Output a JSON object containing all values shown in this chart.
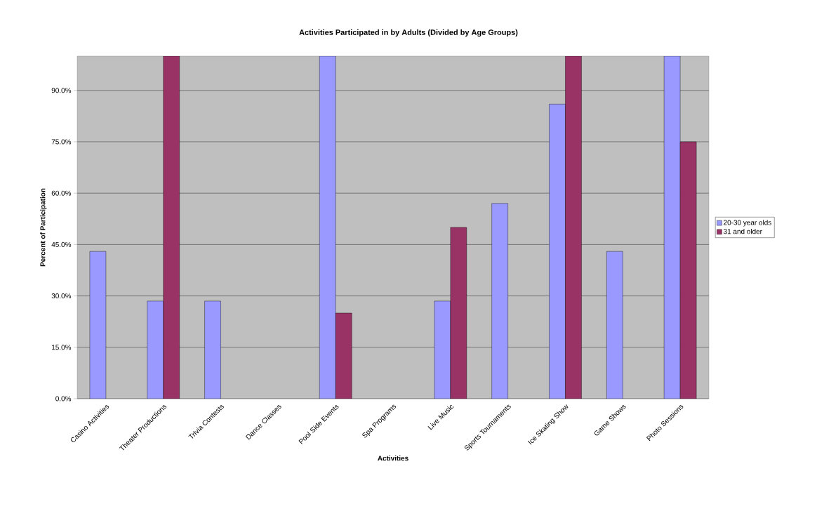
{
  "chart_data": {
    "type": "bar",
    "title": "Activities Participated in by Adults (Divided by Age Groups)",
    "xlabel": "Activities",
    "ylabel": "Percent of Participation",
    "categories": [
      "Casino Activities",
      "Theater Productions",
      "Trivia Contests",
      "Dance Classes",
      "Pool Side Events",
      "Spa Programs",
      "Live Music",
      "Sports Tournaments",
      "Ice Skating Show",
      "Game Shows",
      "Photo Sessions"
    ],
    "series": [
      {
        "name": "20-30 year olds",
        "color": "#9999ff",
        "values": [
          43,
          28.5,
          28.5,
          null,
          100,
          null,
          28.5,
          57,
          86,
          43,
          100
        ]
      },
      {
        "name": "31 and older",
        "color": "#993366",
        "values": [
          null,
          100,
          null,
          null,
          25,
          null,
          50,
          null,
          100,
          null,
          75
        ]
      }
    ],
    "ylim": [
      0,
      100
    ],
    "yticks": [
      {
        "value": 0,
        "label": "0.0%"
      },
      {
        "value": 15,
        "label": "15.0%"
      },
      {
        "value": 30,
        "label": "30.0%"
      },
      {
        "value": 45,
        "label": "45.0%"
      },
      {
        "value": 60,
        "label": "60.0%"
      },
      {
        "value": 75,
        "label": "75.0%"
      },
      {
        "value": 90,
        "label": "90.0%"
      }
    ],
    "grid": "y",
    "legend": "right"
  }
}
